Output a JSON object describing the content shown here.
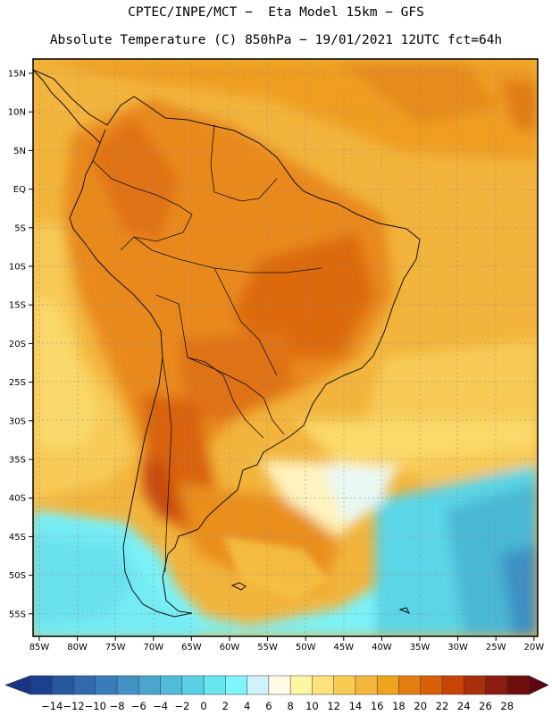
{
  "title": {
    "line1": "CPTEC/INPE/MCT −  Eta Model 15km − GFS",
    "line2": "Absolute Temperature (C) 850hPa − 19/01/2021 12UTC fct=64h"
  },
  "map": {
    "lat_labels": [
      "15N",
      "10N",
      "5N",
      "EQ",
      "5S",
      "10S",
      "15S",
      "20S",
      "25S",
      "30S",
      "35S",
      "40S",
      "45S",
      "50S",
      "55S"
    ],
    "lon_labels": [
      "85W",
      "80W",
      "75W",
      "70W",
      "65W",
      "60W",
      "55W",
      "50W",
      "45W",
      "40W",
      "35W",
      "30W",
      "25W",
      "20W"
    ],
    "lat_range": [
      17.5,
      -57.5
    ],
    "lon_range": [
      -86.5,
      -19.5
    ]
  },
  "colorbar": {
    "labels": [
      "−14",
      "−12",
      "−10",
      "−8",
      "−6",
      "−4",
      "−2",
      "0",
      "2",
      "4",
      "6",
      "8",
      "10",
      "12",
      "14",
      "16",
      "18",
      "20",
      "22",
      "24",
      "26",
      "28"
    ],
    "colors": [
      "#1d3f8f",
      "#27579f",
      "#3069ad",
      "#3a7bbb",
      "#4390c4",
      "#4aa6cd",
      "#50bcd8",
      "#58d2e4",
      "#6ae6ee",
      "#7ef6fa",
      "#cef3fa",
      "#fffbe6",
      "#fff6a5",
      "#fde27c",
      "#f8cc52",
      "#f3b73b",
      "#eea41c",
      "#e57e10",
      "#d86008",
      "#c94306",
      "#a92f0a",
      "#8a1d0f",
      "#6e0f0e"
    ],
    "left_end_color": "#1b3585",
    "right_end_color": "#5e0712"
  }
}
